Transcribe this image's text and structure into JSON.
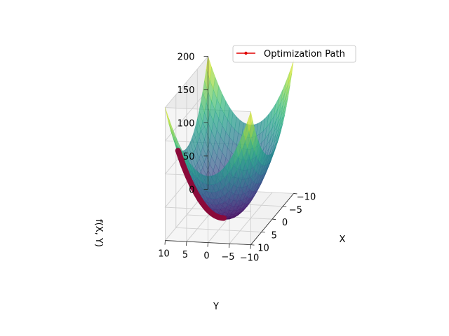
{
  "chart_data": {
    "type": "surface3d",
    "title": "",
    "surface": {
      "function": "X^2 + Y^2",
      "x_range": [
        -10,
        10
      ],
      "y_range": [
        -10,
        10
      ],
      "colormap": "viridis",
      "alpha": 0.7
    },
    "axes": {
      "x": {
        "label": "X",
        "ticks": [
          10,
          5,
          0,
          -5,
          -10
        ],
        "tick_labels": [
          "10",
          "5",
          "0",
          "−5",
          "−10"
        ],
        "lim": [
          -10,
          10
        ]
      },
      "y": {
        "label": "Y",
        "ticks": [
          10,
          5,
          0,
          -5,
          -10
        ],
        "tick_labels": [
          "10",
          "5",
          "0",
          "−5",
          "−10"
        ],
        "lim": [
          -10,
          10
        ]
      },
      "z": {
        "label": "f(X, Y)",
        "ticks": [
          0,
          50,
          100,
          150,
          200
        ],
        "tick_labels": [
          "0",
          "50",
          "100",
          "150",
          "200"
        ],
        "lim": [
          0,
          200
        ]
      }
    },
    "series": [
      {
        "name": "Optimization Path",
        "type": "line",
        "color": "#e00000",
        "path_color": "#8b0a3a",
        "x": [
          8.0,
          7.2,
          6.48,
          5.83,
          5.25,
          4.72,
          4.25,
          3.83,
          3.44,
          3.1,
          2.79,
          2.51,
          2.26,
          2.03,
          1.83,
          1.65,
          1.48,
          1.33,
          1.2,
          1.08,
          0.97,
          0.87
        ],
        "y": [
          8.0,
          7.2,
          6.48,
          5.83,
          5.25,
          4.72,
          4.25,
          3.83,
          3.44,
          3.1,
          2.79,
          2.51,
          2.26,
          2.03,
          1.83,
          1.65,
          1.48,
          1.33,
          1.2,
          1.08,
          0.97,
          0.87
        ]
      }
    ],
    "legend": {
      "position": "top-right",
      "entries": [
        "Optimization Path"
      ]
    },
    "grid": true
  }
}
